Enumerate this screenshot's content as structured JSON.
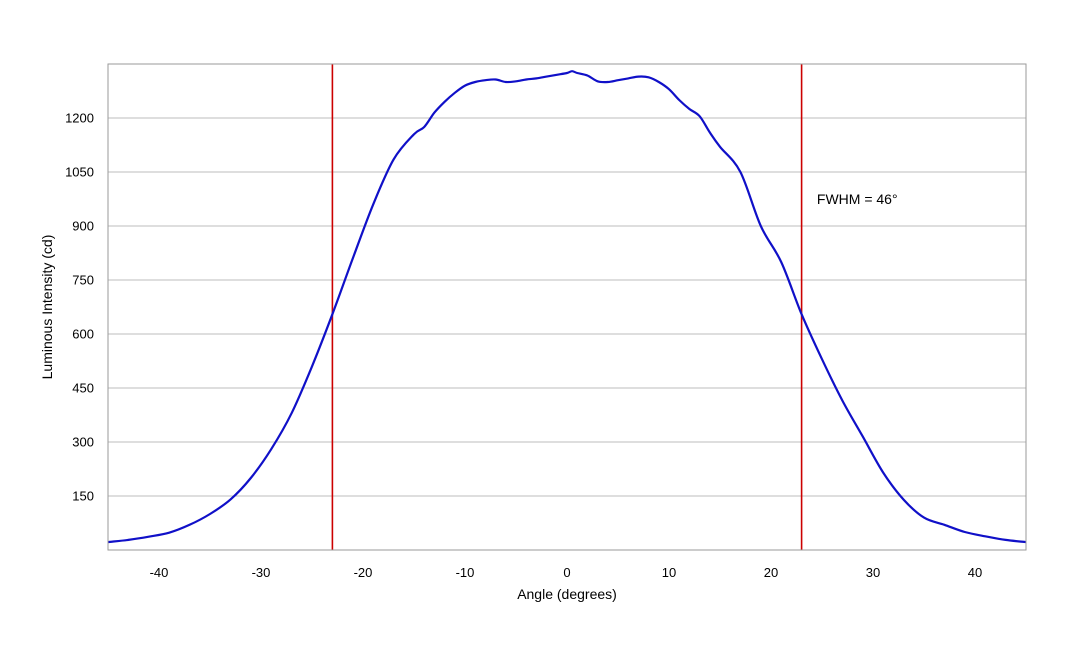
{
  "chart_data": {
    "type": "line",
    "title": "",
    "xlabel": "Angle (degrees)",
    "ylabel": "Luminous Intensity (cd)",
    "xlim": [
      -45,
      45
    ],
    "ylim": [
      0,
      1350
    ],
    "x_ticks": [
      -40,
      -30,
      -20,
      -10,
      0,
      10,
      20,
      30,
      40
    ],
    "y_ticks": [
      150,
      300,
      450,
      600,
      750,
      900,
      1050,
      1200
    ],
    "grid": "horizontal",
    "series": [
      {
        "color": "#1010c8",
        "x": [
          -45,
          -43,
          -41,
          -39,
          -37,
          -35,
          -33,
          -31,
          -29,
          -27,
          -25,
          -23,
          -21,
          -19,
          -17,
          -15,
          -14,
          -13,
          -12,
          -11,
          -10,
          -9,
          -8,
          -7,
          -6,
          -5,
          -4,
          -3,
          -2,
          -1,
          0,
          0.5,
          1,
          2,
          3,
          4,
          5,
          6,
          7,
          8,
          9,
          10,
          11,
          12,
          13,
          14,
          15,
          17,
          19,
          21,
          23,
          25,
          27,
          29,
          31,
          33,
          35,
          37,
          39,
          41,
          43,
          45
        ],
        "y": [
          22,
          28,
          37,
          48,
          70,
          100,
          140,
          200,
          280,
          380,
          510,
          655,
          810,
          960,
          1085,
          1155,
          1175,
          1215,
          1245,
          1270,
          1290,
          1300,
          1305,
          1307,
          1300,
          1302,
          1307,
          1310,
          1315,
          1320,
          1325,
          1330,
          1325,
          1318,
          1302,
          1300,
          1305,
          1310,
          1315,
          1313,
          1300,
          1280,
          1250,
          1225,
          1205,
          1160,
          1120,
          1050,
          900,
          800,
          655,
          530,
          415,
          315,
          215,
          140,
          90,
          70,
          50,
          38,
          28,
          22
        ]
      }
    ],
    "vertical_lines": [
      {
        "x": -23,
        "color": "#cc0000"
      },
      {
        "x": 23,
        "color": "#cc0000"
      }
    ],
    "annotations": [
      {
        "text": "FWHM = 46°",
        "x": 24.5,
        "y": 975
      }
    ]
  }
}
